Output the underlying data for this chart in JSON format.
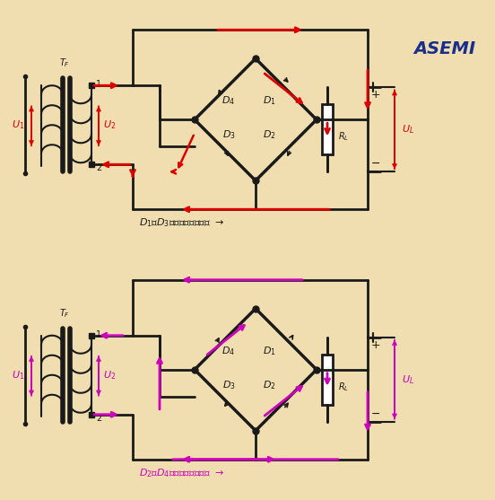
{
  "bg_color": "#f0ddb0",
  "cc": "#1a1a1a",
  "fc1": "#dd0000",
  "fc2": "#cc00bb",
  "asemi_blue": "#1a2f8a",
  "asemi_red": "#cc0000",
  "label1": "D₁、D₃导通时的电流方向",
  "label2": "D₂、D₄导通时的电流方向",
  "figsize": [
    5.52,
    5.57
  ],
  "dpi": 100
}
